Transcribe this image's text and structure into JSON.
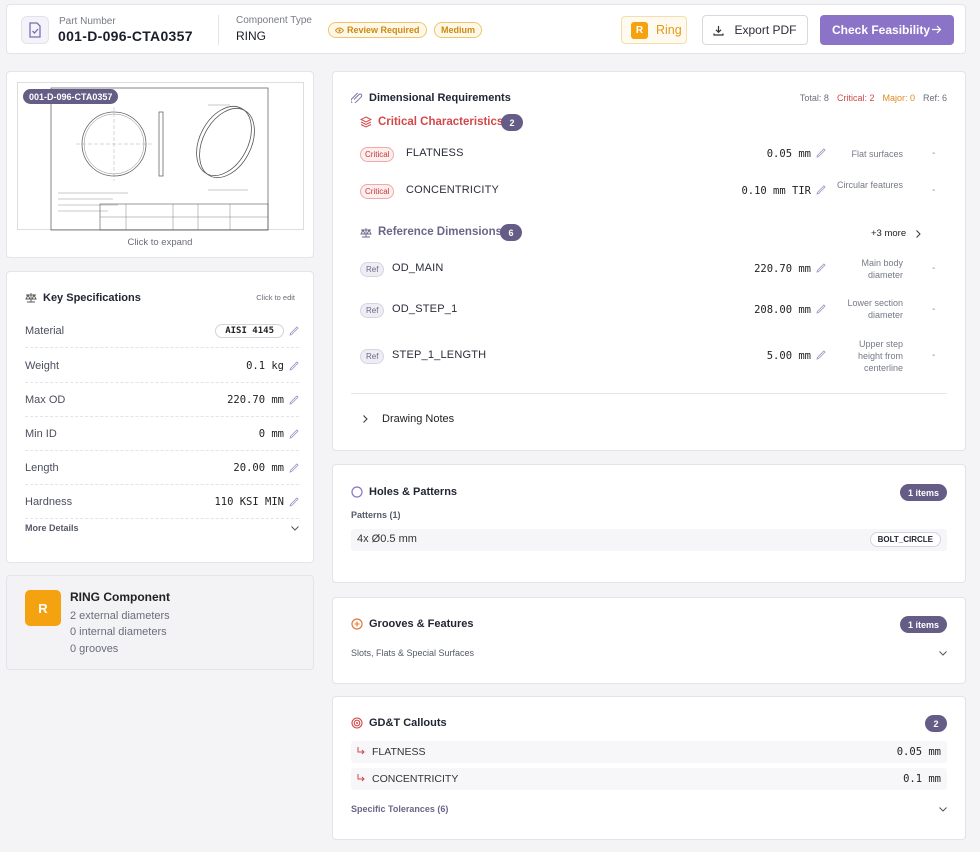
{
  "header": {
    "part_number_label": "Part Number",
    "part_number": "001-D-096-CTA0357",
    "component_type_label": "Component Type",
    "component_type": "RING",
    "review_badge": "Review Required",
    "priority_badge": "Medium",
    "type_chip_letter": "R",
    "type_chip_label": "Ring",
    "export_label": "Export PDF",
    "feasibility_label": "Check Feasibility"
  },
  "drawing": {
    "tag": "001-D-096-CTA0357",
    "caption": "Click to expand"
  },
  "specs": {
    "title": "Key Specifications",
    "edit_hint": "Click to edit",
    "rows": [
      {
        "label": "Material",
        "value": "AISI 4145"
      },
      {
        "label": "Weight",
        "value": "0.1 kg"
      },
      {
        "label": "Max OD",
        "value": "220.70 mm"
      },
      {
        "label": "Min ID",
        "value": "0 mm"
      },
      {
        "label": "Length",
        "value": "20.00 mm"
      },
      {
        "label": "Hardness",
        "value": "110 KSI MIN"
      }
    ],
    "more": "More Details"
  },
  "ring": {
    "letter": "R",
    "title": "RING Component",
    "lines": [
      "2 external diameters",
      "0 internal diameters",
      "0 grooves"
    ]
  },
  "dimensional": {
    "title": "Dimensional Requirements",
    "total": "Total: 8",
    "critical": "Critical: 2",
    "major": "Major: 0",
    "ref": "Ref: 6",
    "critical_section": "Critical Characteristics",
    "critical_count": "2",
    "critical_items": [
      {
        "badge": "Critical",
        "name": "FLATNESS",
        "value": "0.05 mm",
        "desc": "Flat surfaces",
        "dash": "-"
      },
      {
        "badge": "Critical",
        "name": "CONCENTRICITY",
        "value": "0.10 mm TIR",
        "desc": "Circular features",
        "dash": "-"
      }
    ],
    "reference_section": "Reference Dimensions",
    "reference_count": "6",
    "more": "+3 more",
    "reference_items": [
      {
        "badge": "Ref",
        "name": "OD_MAIN",
        "value": "220.70 mm",
        "desc": "Main body diameter",
        "dash": "-"
      },
      {
        "badge": "Ref",
        "name": "OD_STEP_1",
        "value": "208.00 mm",
        "desc": "Lower section diameter",
        "dash": "-"
      },
      {
        "badge": "Ref",
        "name": "STEP_1_LENGTH",
        "value": "5.00 mm",
        "desc": "Upper step height from centerline",
        "dash": "-"
      }
    ],
    "notes": "Drawing Notes"
  },
  "holes": {
    "title": "Holes & Patterns",
    "count": "1 items",
    "subtitle": "Patterns (1)",
    "item": "4x Ø0.5 mm",
    "item_tag": "BOLT_CIRCLE"
  },
  "grooves": {
    "title": "Grooves & Features",
    "count": "1 items",
    "subtitle": "Slots, Flats & Special Surfaces"
  },
  "gdt": {
    "title": "GD&T Callouts",
    "count": "2",
    "items": [
      {
        "name": "FLATNESS",
        "value": "0.05 mm"
      },
      {
        "name": "CONCENTRICITY",
        "value": "0.1 mm"
      }
    ],
    "specific": "Specific Tolerances (6)"
  },
  "colors": {
    "accent": "#8b74c7",
    "critical": "#d24848",
    "major": "#e08a1e",
    "count_pill": "#655d86",
    "ring_orange": "#f5a211"
  },
  "icons": [
    "document-check-icon",
    "eye-icon",
    "download-icon",
    "arrow-right-icon",
    "scale-icon",
    "pencil-icon",
    "chevron-down-icon",
    "paperclip-icon",
    "layers-icon",
    "chevron-right-icon",
    "circle-icon",
    "plus-circle-icon",
    "target-icon",
    "return-arrow-icon"
  ]
}
